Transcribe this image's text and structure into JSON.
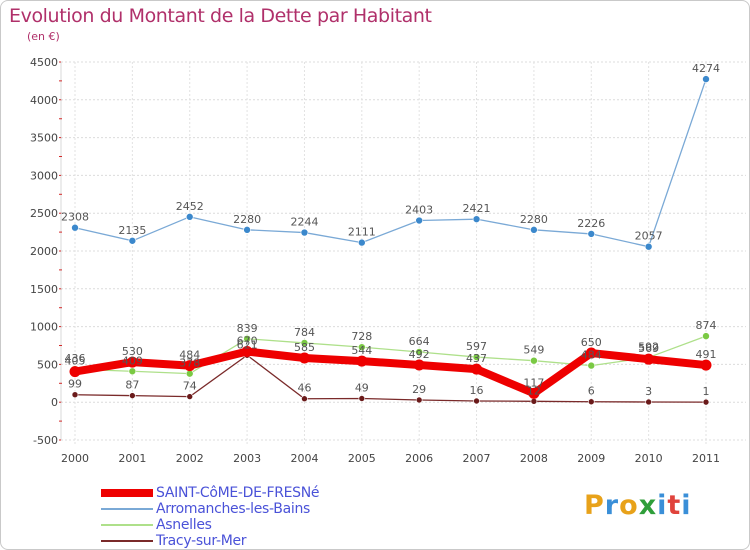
{
  "title": "Evolution du Montant de la Dette par Habitant",
  "unit": "(en €)",
  "logo": [
    "P",
    "r",
    "o",
    "x",
    "i",
    "t",
    "i"
  ],
  "logo_colors": [
    "#e8a21a",
    "#3a8fd8",
    "#e8a21a",
    "#2f9e3a",
    "#3a8fd8",
    "#e0433c",
    "#3a8fd8"
  ],
  "chart_data": {
    "type": "line",
    "title": "Evolution du Montant de la Dette par Habitant",
    "ylabel": "(en €)",
    "xlabel": "",
    "ylim": [
      -500,
      4500
    ],
    "yticks": [
      "-500",
      "0",
      "500",
      "1000",
      "1500",
      "2000",
      "2500",
      "3000",
      "3500",
      "4000",
      "4500"
    ],
    "categories": [
      "2000",
      "2001",
      "2002",
      "2003",
      "2004",
      "2005",
      "2006",
      "2007",
      "2008",
      "2009",
      "2010",
      "2011"
    ],
    "legend_position": "bottom-left",
    "series": [
      {
        "name": "SAINT-CôME-DE-FRESNé",
        "color": "#ee0000",
        "marker": "#ee0000",
        "values": [
          405,
          530,
          484,
          670,
          585,
          544,
          492,
          437,
          117,
          650,
          569,
          491
        ],
        "labels": [
          "405",
          "530",
          "484",
          "670",
          "585",
          "544",
          "492",
          "437",
          "117",
          "650",
          "569",
          "491"
        ]
      },
      {
        "name": "Arromanches-les-Bains",
        "color": "#7aa9d6",
        "marker": "#3b88cc",
        "values": [
          2308,
          2135,
          2452,
          2280,
          2244,
          2111,
          2403,
          2421,
          2280,
          2226,
          2057,
          4274
        ],
        "labels": [
          "2308",
          "2135",
          "2452",
          "2280",
          "2244",
          "2111",
          "2403",
          "2421",
          "2280",
          "2226",
          "2057",
          "4274"
        ]
      },
      {
        "name": "Asnelles",
        "color": "#aee08a",
        "marker": "#7ac943",
        "values": [
          436,
          409,
          378,
          839,
          784,
          728,
          664,
          597,
          549,
          484,
          592,
          874
        ],
        "labels": [
          "436",
          "409",
          "378",
          "839",
          "784",
          "728",
          "664",
          "597",
          "549",
          "484",
          "592",
          "874"
        ]
      },
      {
        "name": "Tracy-sur-Mer",
        "color": "#7a2a2a",
        "marker": "#6a1a1a",
        "values": [
          99,
          87,
          74,
          621,
          46,
          49,
          29,
          16,
          12,
          6,
          3,
          1
        ],
        "labels": [
          "99",
          "87",
          "74",
          "621",
          "46",
          "49",
          "29",
          "16",
          "12",
          "6",
          "3",
          "1"
        ]
      }
    ]
  }
}
